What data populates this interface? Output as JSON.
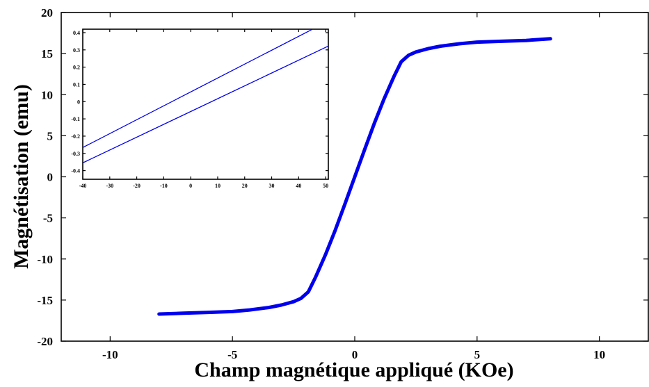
{
  "chart_data": [
    {
      "type": "line",
      "xlabel": "Champ magnétique appliqué (KOe)",
      "ylabel": "Magnétisation (emu)",
      "xlim": [
        -12,
        12
      ],
      "ylim": [
        -20,
        20
      ],
      "xticks": [
        -10,
        -5,
        0,
        5,
        10
      ],
      "yticks": [
        -20,
        -15,
        -10,
        -5,
        0,
        5,
        10,
        15,
        20
      ],
      "grid": false,
      "color": "#0000ee",
      "series": [
        {
          "x": [
            -8,
            -7,
            -6,
            -5,
            -4.3,
            -3.5,
            -3,
            -2.5,
            -2.2,
            -1.9,
            -1.6,
            -1.2,
            -0.8,
            -0.4,
            0,
            0.4,
            0.8,
            1.2,
            1.6,
            1.9,
            2.2,
            2.5,
            3,
            3.5,
            4.3,
            5,
            6,
            7,
            8
          ],
          "y": [
            -16.7,
            -16.6,
            -16.5,
            -16.4,
            -16.2,
            -15.9,
            -15.6,
            -15.2,
            -14.8,
            -14.0,
            -12.2,
            -9.5,
            -6.5,
            -3.3,
            0,
            3.3,
            6.5,
            9.5,
            12.2,
            14.0,
            14.8,
            15.2,
            15.6,
            15.9,
            16.2,
            16.4,
            16.5,
            16.6,
            16.8
          ]
        }
      ]
    },
    {
      "type": "line",
      "xlim": [
        -40,
        51
      ],
      "ylim": [
        -0.45,
        0.42
      ],
      "xticks": [
        -40,
        -30,
        -20,
        -10,
        0,
        10,
        20,
        30,
        40,
        50
      ],
      "yticks": [
        -0.4,
        -0.3,
        -0.2,
        -0.1,
        0,
        0.1,
        0.2,
        0.3,
        0.4
      ],
      "grid": false,
      "color": "#0000ee",
      "series": [
        {
          "x": [
            -40,
            51
          ],
          "y": [
            -0.266,
            0.467
          ]
        },
        {
          "x": [
            -40,
            51
          ],
          "y": [
            -0.355,
            0.322
          ]
        }
      ]
    }
  ]
}
